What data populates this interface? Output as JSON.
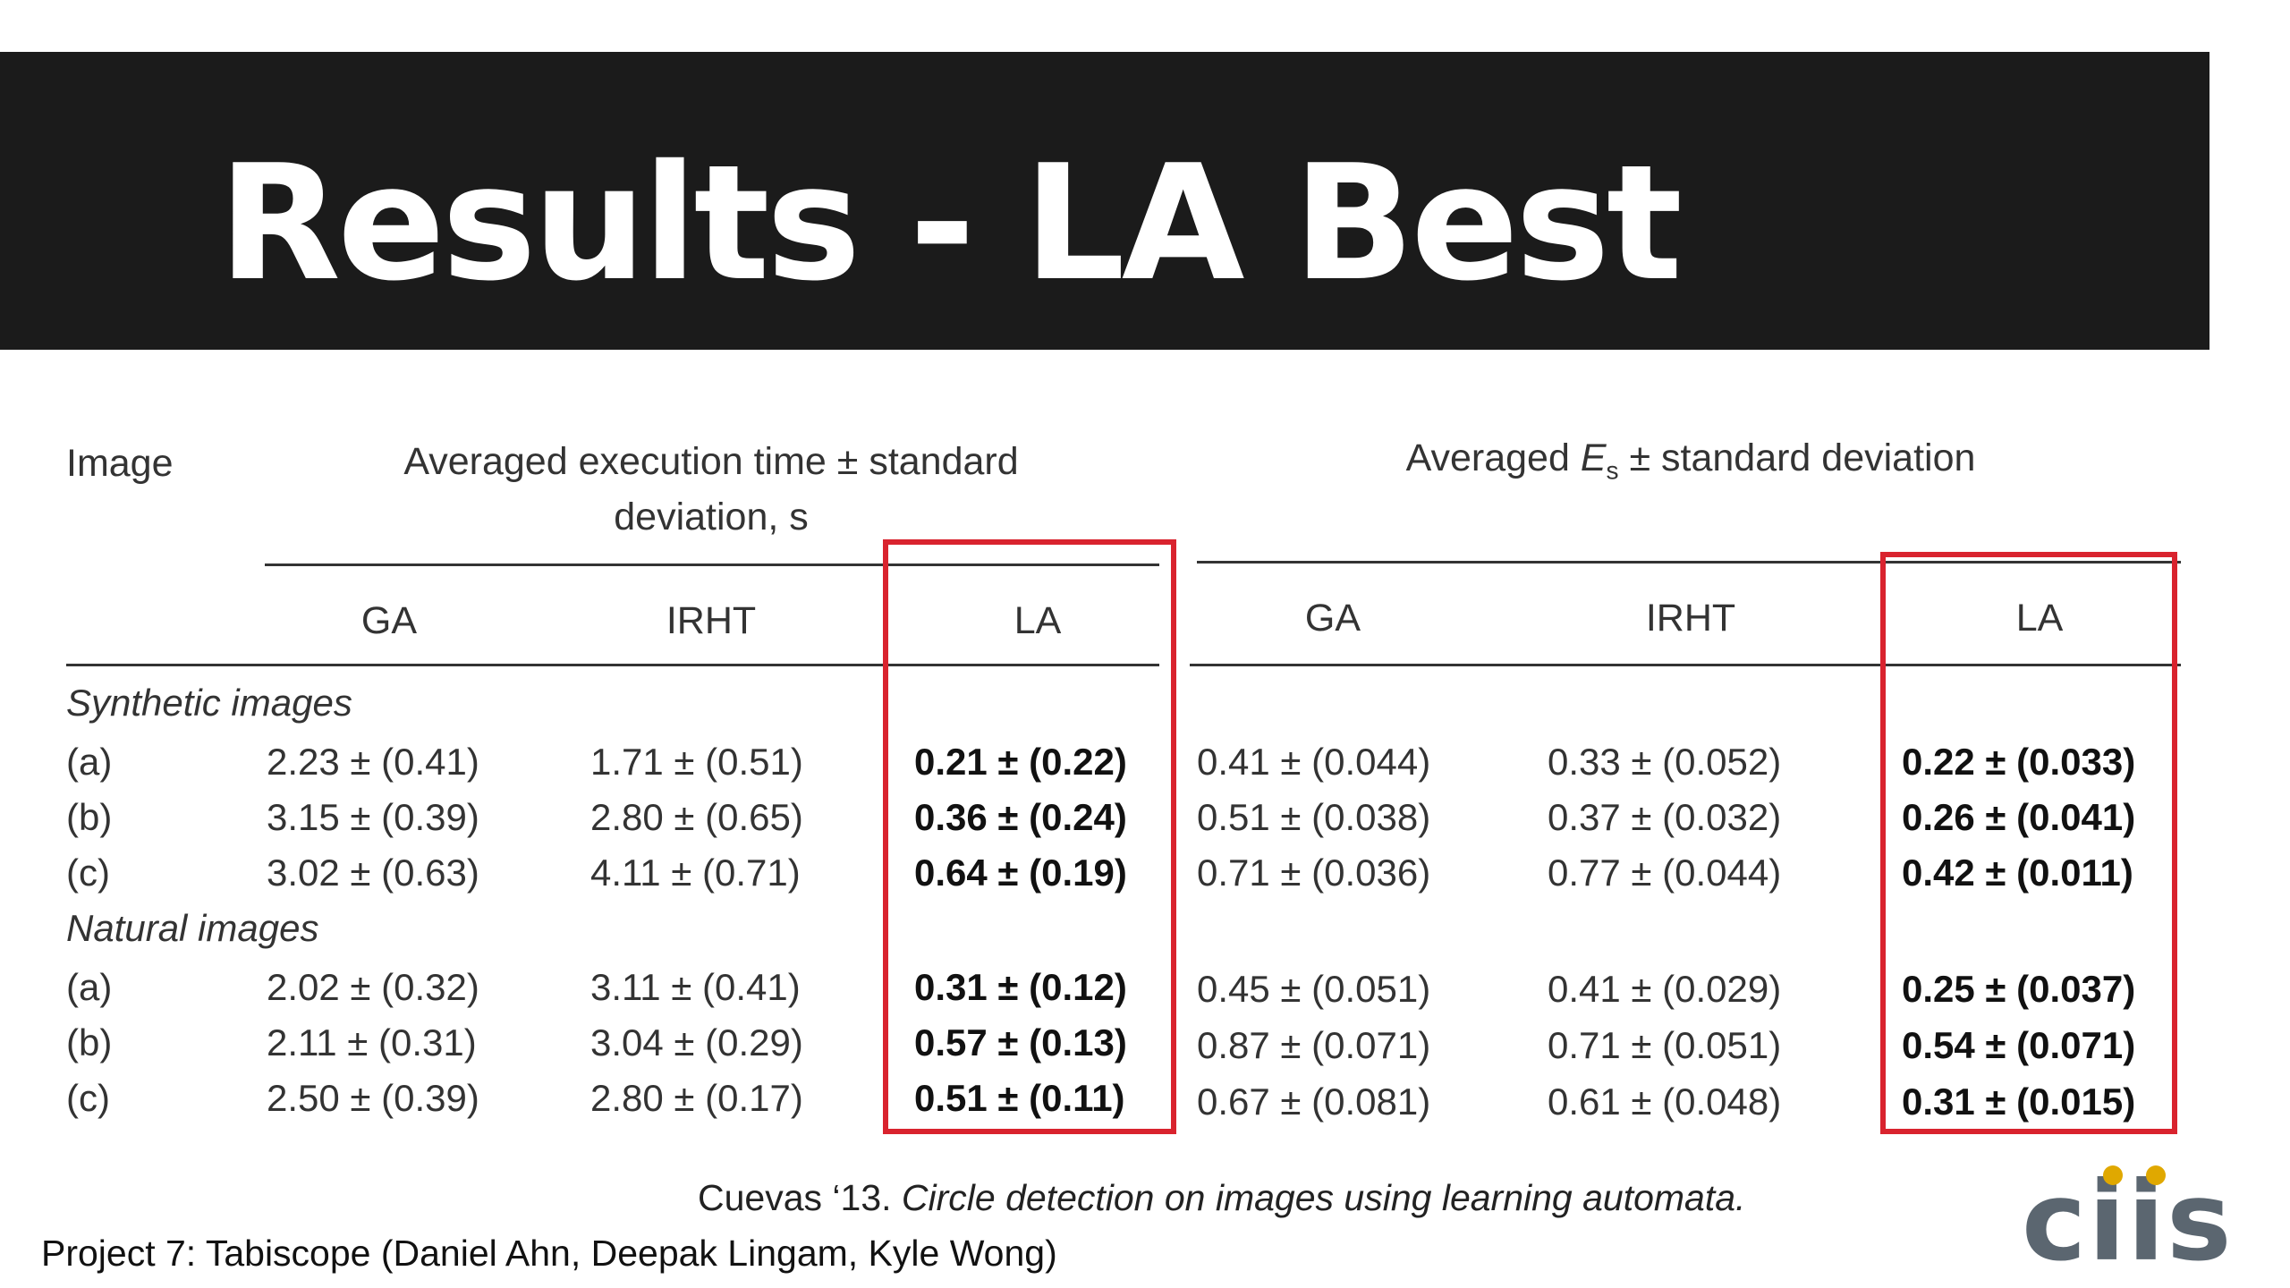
{
  "slide": {
    "title": "Results - LA Best",
    "footer": "Project 7: Tabiscope (Daniel Ahn, Deepak Lingam, Kyle Wong)"
  },
  "table": {
    "image_header": "Image",
    "group1_header_line1": "Averaged execution time ± standard",
    "group1_header_line2": "deviation, s",
    "group2_header_prefix": "Averaged ",
    "group2_header_symbol": "E",
    "group2_header_sub": "s",
    "group2_header_suffix": " ± standard deviation",
    "columns": [
      "GA",
      "IRHT",
      "LA",
      "GA",
      "IRHT",
      "LA"
    ],
    "sections": [
      {
        "name": "Synthetic images",
        "rows": [
          {
            "label": "(a)",
            "values": [
              "2.23 ± (0.41)",
              "1.71 ± (0.51)",
              "0.21 ± (0.22)",
              "0.41 ± (0.044)",
              "0.33 ± (0.052)",
              "0.22 ± (0.033)"
            ]
          },
          {
            "label": "(b)",
            "values": [
              "3.15 ± (0.39)",
              "2.80 ± (0.65)",
              "0.36 ± (0.24)",
              "0.51 ± (0.038)",
              "0.37 ± (0.032)",
              "0.26 ± (0.041)"
            ]
          },
          {
            "label": "(c)",
            "values": [
              "3.02 ± (0.63)",
              "4.11 ± (0.71)",
              "0.64 ± (0.19)",
              "0.71 ± (0.036)",
              "0.77 ± (0.044)",
              "0.42 ± (0.011)"
            ]
          }
        ]
      },
      {
        "name": "Natural images",
        "rows": [
          {
            "label": "(a)",
            "values": [
              "2.02 ± (0.32)",
              "3.11 ± (0.41)",
              "0.31 ± (0.12)",
              "0.45 ± (0.051)",
              "0.41 ± (0.029)",
              "0.25 ± (0.037)"
            ]
          },
          {
            "label": "(b)",
            "values": [
              "2.11 ± (0.31)",
              "3.04 ± (0.29)",
              "0.57 ± (0.13)",
              "0.87 ± (0.071)",
              "0.71 ± (0.051)",
              "0.54 ± (0.071)"
            ]
          },
          {
            "label": "(c)",
            "values": [
              "2.50 ± (0.39)",
              "2.80 ± (0.17)",
              "0.51 ± (0.11)",
              "0.67 ± (0.081)",
              "0.61 ± (0.048)",
              "0.31 ± (0.015)"
            ]
          }
        ]
      }
    ],
    "highlight_color": "#d9232e"
  },
  "citation": {
    "prefix": "Cuevas ‘13. ",
    "title": "Circle detection on images using learning automata."
  },
  "logo": {
    "text": "ciis",
    "dot_color": "#e0a800",
    "letter_color": "#5b6670"
  }
}
